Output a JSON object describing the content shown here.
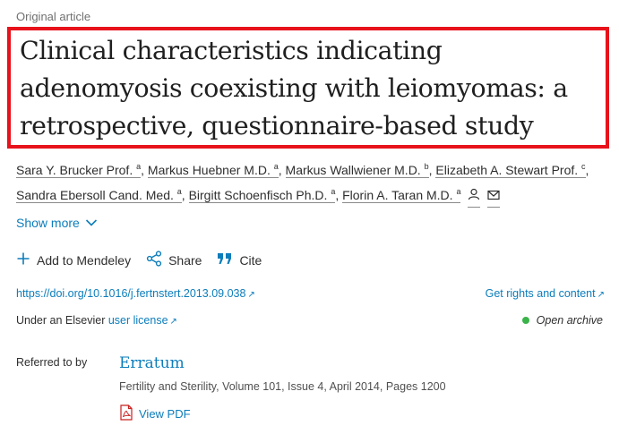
{
  "article_type": "Original article",
  "title": "Clinical characteristics indicating adenomyosis coexisting with leiomyomas: a retrospective, questionnaire-based study",
  "authors": [
    {
      "name": "Sara Y. Brucker Prof.",
      "sup": "a"
    },
    {
      "name": "Markus Huebner M.D.",
      "sup": "a"
    },
    {
      "name": "Markus Wallwiener M.D.",
      "sup": "b"
    },
    {
      "name": "Elizabeth A. Stewart Prof.",
      "sup": "c"
    },
    {
      "name": "Sandra Ebersoll Cand. Med.",
      "sup": "a"
    },
    {
      "name": "Birgitt Schoenfisch Ph.D.",
      "sup": "a"
    },
    {
      "name": "Florin A. Taran M.D.",
      "sup": "a"
    }
  ],
  "show_more": "Show more",
  "toolbar": {
    "mendeley": "Add to Mendeley",
    "share": "Share",
    "cite": "Cite"
  },
  "doi": "https://doi.org/10.1016/j.fertnstert.2013.09.038",
  "rights": "Get rights and content",
  "license": {
    "prefix": "Under an Elsevier",
    "link": "user license"
  },
  "open_archive": "Open archive",
  "referred_by": {
    "label": "Referred to by",
    "title": "Erratum",
    "citation": "Fertility and Sterility, Volume 101, Issue 4, April 2014, Pages 1200",
    "view_pdf": "View PDF"
  },
  "colors": {
    "link": "#0c7dbb",
    "highlight_border": "#e8121b",
    "open_archive_dot": "#3ab34a"
  }
}
